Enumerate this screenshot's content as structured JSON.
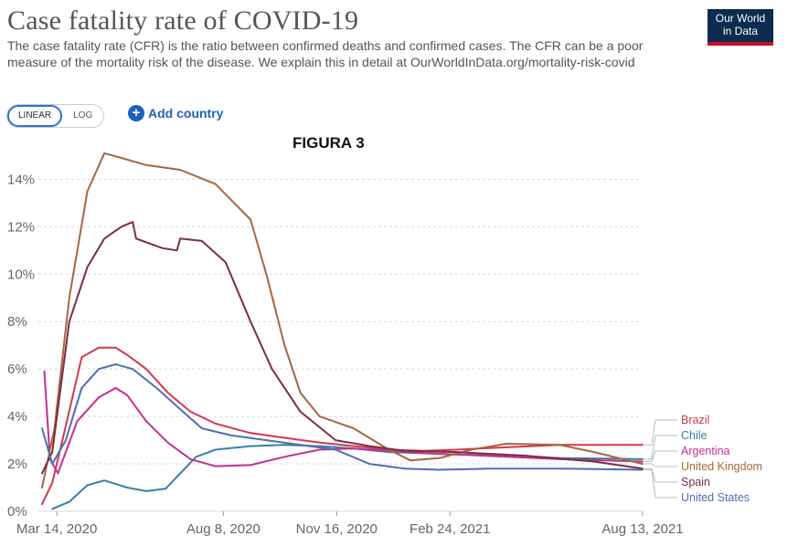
{
  "header": {
    "title": "Case fatality rate of COVID-19",
    "subtitle": "The case fatality rate (CFR) is the ratio between confirmed deaths and confirmed cases. The CFR can be a poor measure of the mortality risk of the disease. We explain this in detail at OurWorldInData.org/mortality-risk-covid",
    "logo_line1": "Our World",
    "logo_line2": "in Data"
  },
  "controls": {
    "linear_label": "LINEAR",
    "log_label": "LOG",
    "active_scale": "linear",
    "add_country_label": "Add country",
    "add_icon": "plus-circle-icon"
  },
  "annotation": {
    "figure_label": "FIGURA 3"
  },
  "colors": {
    "brazil": "#d2384f",
    "chile": "#3a7fa8",
    "argentina": "#c4308c",
    "united_kingdom": "#a5673d",
    "spain": "#7a2e45",
    "united_states": "#4f6fad",
    "grid": "#d8d8d8",
    "axis_text": "#666666"
  },
  "chart_data": {
    "type": "line",
    "ylim": [
      0,
      15.4
    ],
    "y_ticks": [
      0,
      2,
      4,
      6,
      8,
      10,
      12,
      14
    ],
    "y_tick_labels": [
      "0%",
      "2%",
      "4%",
      "6%",
      "8%",
      "10%",
      "12%",
      "14%"
    ],
    "x_ticks": [
      "2020-03-14",
      "2020-08-08",
      "2020-11-16",
      "2021-02-24",
      "2021-08-13"
    ],
    "x_tick_labels": [
      "Mar 14, 2020",
      "Aug 8, 2020",
      "Nov 16, 2020",
      "Feb 24, 2021",
      "Aug 13, 2021"
    ],
    "x_range": [
      "2020-03-01",
      "2021-08-13"
    ],
    "grid": "horizontal dotted",
    "legend_position": "right, at line ends",
    "series": [
      {
        "name": "Brazil",
        "color_key": "brazil",
        "points": [
          [
            "2020-03-01",
            0.3
          ],
          [
            "2020-03-10",
            1.2
          ],
          [
            "2020-03-22",
            3.6
          ],
          [
            "2020-04-05",
            6.5
          ],
          [
            "2020-04-20",
            6.9
          ],
          [
            "2020-05-05",
            6.9
          ],
          [
            "2020-05-15",
            6.6
          ],
          [
            "2020-06-01",
            6.0
          ],
          [
            "2020-06-20",
            5.0
          ],
          [
            "2020-07-10",
            4.2
          ],
          [
            "2020-08-01",
            3.7
          ],
          [
            "2020-09-01",
            3.3
          ],
          [
            "2020-10-01",
            3.1
          ],
          [
            "2020-11-01",
            2.9
          ],
          [
            "2020-12-01",
            2.75
          ],
          [
            "2021-01-01",
            2.6
          ],
          [
            "2021-02-01",
            2.55
          ],
          [
            "2021-03-01",
            2.6
          ],
          [
            "2021-04-15",
            2.7
          ],
          [
            "2021-06-01",
            2.8
          ],
          [
            "2021-08-13",
            2.8
          ]
        ]
      },
      {
        "name": "Chile",
        "color_key": "chile",
        "points": [
          [
            "2020-03-10",
            0.1
          ],
          [
            "2020-03-25",
            0.4
          ],
          [
            "2020-04-10",
            1.1
          ],
          [
            "2020-04-25",
            1.3
          ],
          [
            "2020-05-15",
            1.0
          ],
          [
            "2020-06-01",
            0.85
          ],
          [
            "2020-06-18",
            0.95
          ],
          [
            "2020-07-01",
            1.6
          ],
          [
            "2020-07-15",
            2.3
          ],
          [
            "2020-08-01",
            2.6
          ],
          [
            "2020-09-01",
            2.75
          ],
          [
            "2020-10-01",
            2.8
          ],
          [
            "2020-11-01",
            2.75
          ],
          [
            "2020-12-01",
            2.65
          ],
          [
            "2021-01-01",
            2.5
          ],
          [
            "2021-02-01",
            2.45
          ],
          [
            "2021-03-01",
            2.4
          ],
          [
            "2021-04-15",
            2.35
          ],
          [
            "2021-06-01",
            2.25
          ],
          [
            "2021-08-13",
            2.2
          ]
        ]
      },
      {
        "name": "Argentina",
        "color_key": "argentina",
        "points": [
          [
            "2020-03-03",
            5.9
          ],
          [
            "2020-03-08",
            2.2
          ],
          [
            "2020-03-15",
            1.6
          ],
          [
            "2020-04-01",
            3.8
          ],
          [
            "2020-04-20",
            4.8
          ],
          [
            "2020-05-05",
            5.2
          ],
          [
            "2020-05-15",
            4.9
          ],
          [
            "2020-06-01",
            3.8
          ],
          [
            "2020-06-20",
            2.9
          ],
          [
            "2020-07-10",
            2.2
          ],
          [
            "2020-08-01",
            1.9
          ],
          [
            "2020-09-01",
            1.95
          ],
          [
            "2020-10-01",
            2.3
          ],
          [
            "2020-11-01",
            2.6
          ],
          [
            "2020-12-01",
            2.65
          ],
          [
            "2021-01-01",
            2.55
          ],
          [
            "2021-02-01",
            2.45
          ],
          [
            "2021-03-01",
            2.4
          ],
          [
            "2021-04-15",
            2.3
          ],
          [
            "2021-06-01",
            2.2
          ],
          [
            "2021-08-13",
            2.1
          ]
        ]
      },
      {
        "name": "United Kingdom",
        "color_key": "united_kingdom",
        "points": [
          [
            "2020-03-01",
            1.0
          ],
          [
            "2020-03-12",
            3.5
          ],
          [
            "2020-03-25",
            9.0
          ],
          [
            "2020-04-10",
            13.5
          ],
          [
            "2020-04-25",
            15.1
          ],
          [
            "2020-05-10",
            14.9
          ],
          [
            "2020-06-01",
            14.6
          ],
          [
            "2020-07-01",
            14.4
          ],
          [
            "2020-08-01",
            13.8
          ],
          [
            "2020-09-01",
            12.3
          ],
          [
            "2020-09-15",
            10.0
          ],
          [
            "2020-10-01",
            7.0
          ],
          [
            "2020-10-15",
            5.0
          ],
          [
            "2020-11-01",
            4.0
          ],
          [
            "2020-12-01",
            3.5
          ],
          [
            "2021-01-01",
            2.6
          ],
          [
            "2021-01-20",
            2.15
          ],
          [
            "2021-02-15",
            2.25
          ],
          [
            "2021-03-15",
            2.6
          ],
          [
            "2021-04-15",
            2.85
          ],
          [
            "2021-06-01",
            2.8
          ],
          [
            "2021-07-01",
            2.5
          ],
          [
            "2021-08-13",
            2.0
          ]
        ]
      },
      {
        "name": "Spain",
        "color_key": "spain",
        "points": [
          [
            "2020-03-01",
            1.6
          ],
          [
            "2020-03-10",
            2.5
          ],
          [
            "2020-03-25",
            8.0
          ],
          [
            "2020-04-10",
            10.3
          ],
          [
            "2020-04-25",
            11.5
          ],
          [
            "2020-05-10",
            12.0
          ],
          [
            "2020-05-20",
            12.2
          ],
          [
            "2020-05-23",
            11.5
          ],
          [
            "2020-06-15",
            11.1
          ],
          [
            "2020-06-28",
            11.0
          ],
          [
            "2020-07-01",
            11.5
          ],
          [
            "2020-07-20",
            11.4
          ],
          [
            "2020-08-10",
            10.5
          ],
          [
            "2020-09-01",
            8.0
          ],
          [
            "2020-09-20",
            6.0
          ],
          [
            "2020-10-15",
            4.2
          ],
          [
            "2020-11-15",
            3.0
          ],
          [
            "2020-12-15",
            2.75
          ],
          [
            "2021-01-15",
            2.55
          ],
          [
            "2021-03-01",
            2.5
          ],
          [
            "2021-05-01",
            2.35
          ],
          [
            "2021-07-01",
            2.1
          ],
          [
            "2021-08-13",
            1.8
          ]
        ]
      },
      {
        "name": "United States",
        "color_key": "united_states",
        "points": [
          [
            "2020-03-01",
            3.5
          ],
          [
            "2020-03-10",
            2.0
          ],
          [
            "2020-03-22",
            3.0
          ],
          [
            "2020-04-05",
            5.2
          ],
          [
            "2020-04-20",
            6.0
          ],
          [
            "2020-05-05",
            6.2
          ],
          [
            "2020-05-20",
            6.0
          ],
          [
            "2020-06-10",
            5.2
          ],
          [
            "2020-07-01",
            4.3
          ],
          [
            "2020-07-20",
            3.5
          ],
          [
            "2020-08-15",
            3.2
          ],
          [
            "2020-09-15",
            3.0
          ],
          [
            "2020-10-15",
            2.8
          ],
          [
            "2020-11-15",
            2.6
          ],
          [
            "2020-12-15",
            2.0
          ],
          [
            "2021-01-15",
            1.8
          ],
          [
            "2021-02-15",
            1.75
          ],
          [
            "2021-04-01",
            1.8
          ],
          [
            "2021-06-01",
            1.8
          ],
          [
            "2021-08-13",
            1.75
          ]
        ]
      }
    ]
  }
}
